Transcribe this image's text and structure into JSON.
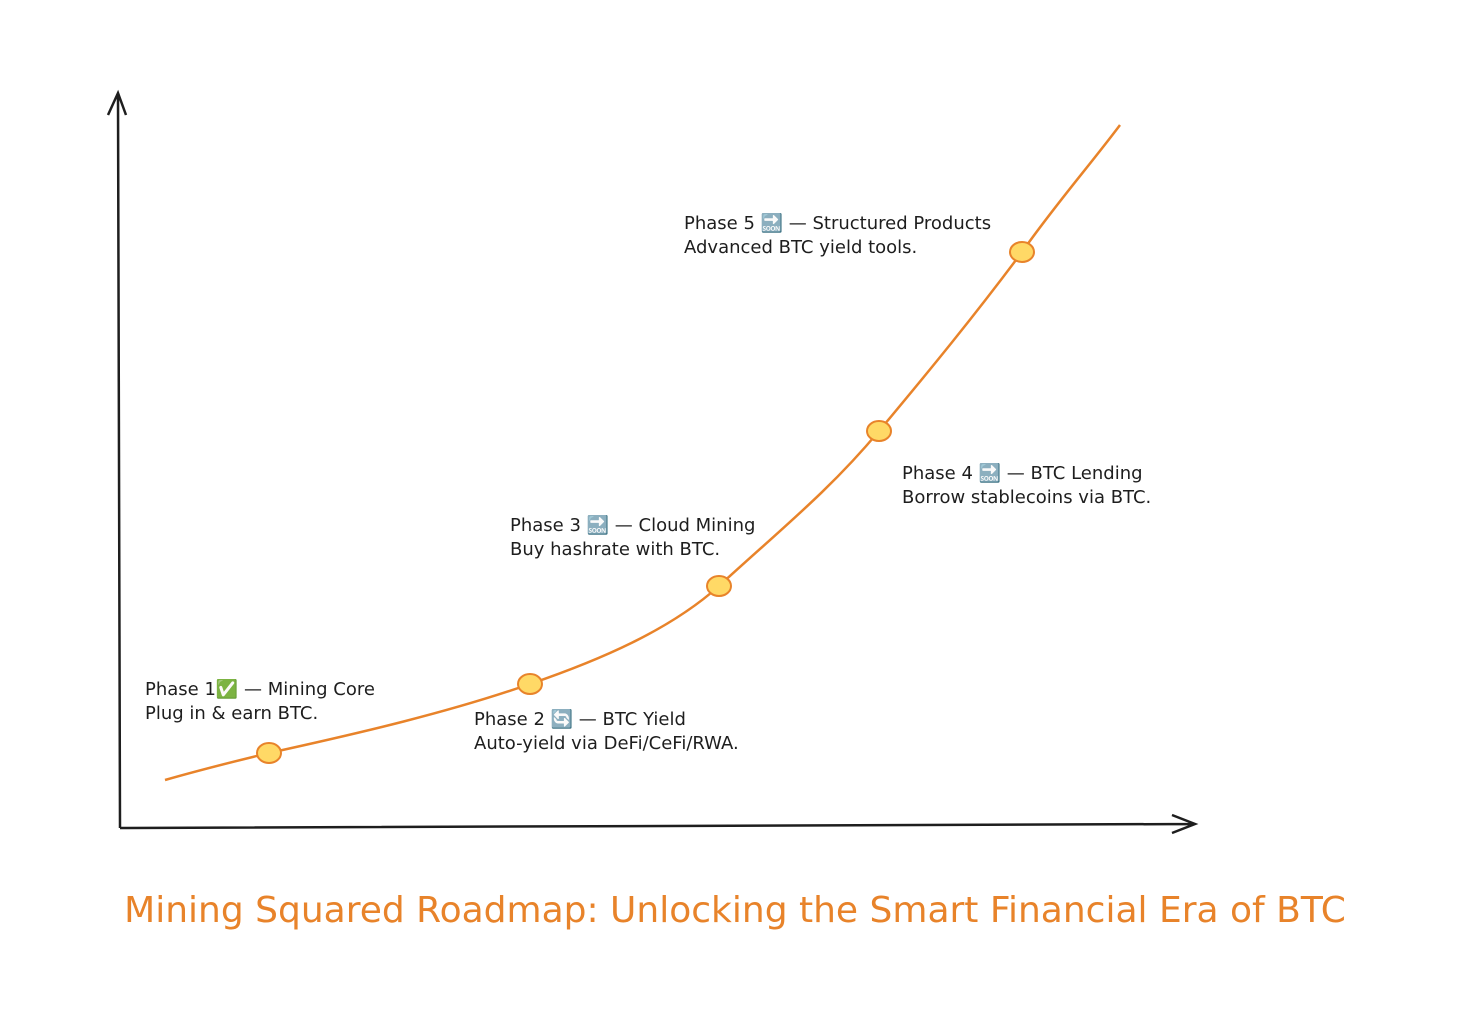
{
  "title": "Mining Squared Roadmap: Unlocking the Smart Financial Era of BTC",
  "phases": [
    {
      "heading": "Phase 1✅ — Mining Core",
      "description": "Plug in & earn BTC."
    },
    {
      "heading": "Phase 2 🔄 — BTC Yield",
      "description": "Auto-yield via DeFi/CeFi/RWA."
    },
    {
      "heading": "Phase 3 🔜  — Cloud Mining",
      "description": "Buy hashrate with BTC."
    },
    {
      "heading": "Phase 4 🔜 — BTC Lending",
      "description": "Borrow stablecoins via BTC."
    },
    {
      "heading": "Phase 5 🔜  — Structured Products",
      "description": "Advanced BTC yield tools."
    }
  ]
}
